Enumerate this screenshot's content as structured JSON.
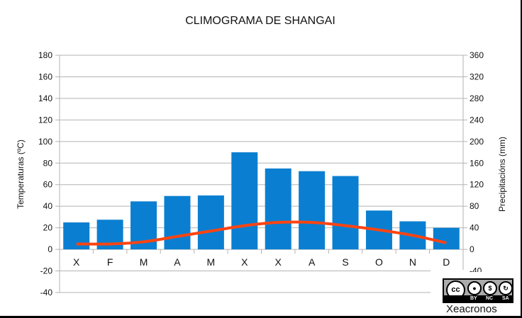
{
  "chart_data": {
    "type": "bar+line",
    "title": "CLIMOGRAMA DE SHANGAI",
    "categories": [
      "X",
      "F",
      "M",
      "A",
      "M",
      "X",
      "X",
      "A",
      "S",
      "O",
      "N",
      "D"
    ],
    "series": [
      {
        "name": "Precipitacións",
        "type": "bar",
        "axis": "right",
        "unit": "mm",
        "color": "#0a7fd1",
        "values": [
          50,
          55,
          89,
          99,
          100,
          180,
          150,
          145,
          136,
          72,
          52,
          40
        ]
      },
      {
        "name": "Temperaturas",
        "type": "line",
        "axis": "left",
        "unit": "°C",
        "color": "#ff4411",
        "values": [
          5,
          5,
          7,
          12,
          17,
          22,
          25,
          25,
          22,
          18,
          13,
          6
        ]
      }
    ],
    "ylabel_left": "Temperaturas (ºC)",
    "ylabel_right": "Precipitacións (mm)",
    "ylim_left": [
      -40,
      180
    ],
    "ylim_right": [
      0,
      360
    ],
    "yticks_left": [
      180,
      160,
      140,
      120,
      100,
      80,
      60,
      40,
      20,
      0,
      -20,
      -40
    ],
    "yticks_right": [
      360,
      320,
      280,
      240,
      200,
      160,
      120,
      80,
      40,
      0,
      -40
    ],
    "grid": true,
    "legend": "none"
  },
  "license": {
    "cc_label": "cc",
    "by_label": "BY",
    "nc_label": "NC",
    "sa_label": "SA",
    "brand": "Xeacronos"
  }
}
